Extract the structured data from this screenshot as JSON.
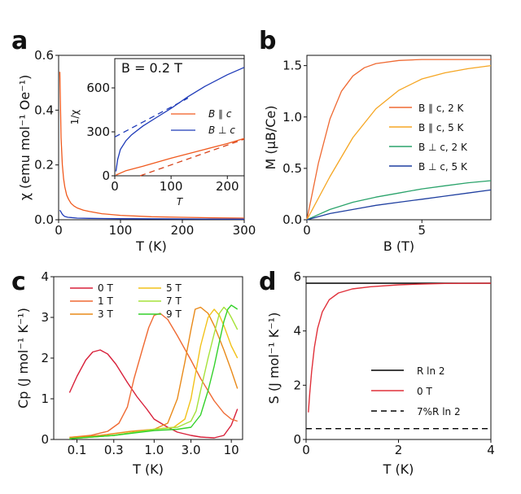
{
  "chart_data": [
    {
      "panel": "a",
      "type": "line",
      "xlabel": "T (K)",
      "ylabel": "χ (emu mol⁻¹ Oe⁻¹)",
      "xlim": [
        0,
        300
      ],
      "ylim": [
        0,
        0.6
      ],
      "xticks": [
        "0",
        "100",
        "200",
        "300"
      ],
      "yticks": [
        "0.0",
        "0.2",
        "0.4",
        "0.6"
      ],
      "series": [
        {
          "name": "B ∥ c",
          "color": "#f05a1e",
          "x": [
            2,
            4,
            6,
            8,
            10,
            13,
            16,
            20,
            25,
            30,
            40,
            50,
            70,
            100,
            150,
            200,
            250,
            300
          ],
          "y": [
            0.54,
            0.3,
            0.2,
            0.15,
            0.12,
            0.09,
            0.075,
            0.06,
            0.05,
            0.043,
            0.035,
            0.03,
            0.022,
            0.016,
            0.011,
            0.009,
            0.007,
            0.006
          ]
        },
        {
          "name": "B ⊥ c",
          "color": "#1e3ab8",
          "x": [
            2,
            4,
            6,
            8,
            10,
            15,
            20,
            30,
            50,
            100,
            200,
            300
          ],
          "y": [
            0.035,
            0.028,
            0.02,
            0.015,
            0.012,
            0.009,
            0.008,
            0.006,
            0.005,
            0.004,
            0.003,
            0.002
          ]
        }
      ],
      "inset": {
        "title": "B = 0.2 T",
        "xlabel": "T",
        "ylabel": "1/χ",
        "xlim": [
          0,
          230
        ],
        "ylim": [
          0,
          800
        ],
        "xticks": [
          "0",
          "100",
          "200"
        ],
        "yticks": [
          "0",
          "300",
          "600"
        ],
        "legend": [
          "B ∥ c",
          "B ⊥ c"
        ],
        "series": [
          {
            "name": "B ∥ c",
            "color": "#f05a1e",
            "x": [
              2,
              20,
              50,
              100,
              150,
              200,
              230
            ],
            "y": [
              5,
              35,
              65,
              120,
              170,
              220,
              255
            ]
          },
          {
            "name": "B ⊥ c",
            "color": "#1e3ab8",
            "x": [
              2,
              5,
              10,
              20,
              30,
              50,
              75,
              100,
              130,
              160,
              200,
              230
            ],
            "y": [
              30,
              110,
              180,
              240,
              280,
              340,
              400,
              460,
              540,
              610,
              690,
              740
            ]
          }
        ],
        "fits": [
          {
            "name": "B ∥ c fit",
            "color": "#d8431a",
            "x": [
              45,
              230
            ],
            "y": [
              0,
              250
            ]
          },
          {
            "name": "B ⊥ c fit",
            "color": "#1e3ab8",
            "x": [
              0,
              130
            ],
            "y": [
              265,
              530
            ]
          }
        ]
      }
    },
    {
      "panel": "b",
      "type": "line",
      "xlabel": "B (T)",
      "ylabel": "M (μB/Ce)",
      "xlim": [
        0,
        8
      ],
      "ylim": [
        0,
        1.6
      ],
      "xticks": [
        "0",
        "5"
      ],
      "yticks": [
        "0.0",
        "0.5",
        "1.0",
        "1.5"
      ],
      "legend": [
        "B ∥ c, 2 K",
        "B ∥ c, 5 K",
        "B ⊥ c, 2 K",
        "B ⊥ c, 5 K"
      ],
      "series": [
        {
          "name": "B ∥ c, 2 K",
          "color": "#ef6a33",
          "x": [
            0,
            0.5,
            1,
            1.5,
            2,
            2.5,
            3,
            4,
            5,
            6,
            7,
            8
          ],
          "y": [
            0,
            0.55,
            0.98,
            1.25,
            1.4,
            1.48,
            1.52,
            1.55,
            1.56,
            1.56,
            1.56,
            1.56
          ]
        },
        {
          "name": "B ∥ c, 5 K",
          "color": "#f5a623",
          "x": [
            0,
            1,
            2,
            3,
            4,
            5,
            6,
            7,
            8
          ],
          "y": [
            0,
            0.42,
            0.8,
            1.08,
            1.26,
            1.37,
            1.43,
            1.47,
            1.5
          ]
        },
        {
          "name": "B ⊥ c, 2 K",
          "color": "#2aa36b",
          "x": [
            0,
            1,
            2,
            3,
            4,
            5,
            6,
            7,
            8
          ],
          "y": [
            0,
            0.1,
            0.17,
            0.22,
            0.26,
            0.3,
            0.33,
            0.36,
            0.38
          ]
        },
        {
          "name": "B ⊥ c, 5 K",
          "color": "#1f3fa0",
          "x": [
            0,
            1,
            2,
            3,
            4,
            5,
            6,
            7,
            8
          ],
          "y": [
            0,
            0.06,
            0.1,
            0.14,
            0.17,
            0.2,
            0.23,
            0.26,
            0.29
          ]
        }
      ]
    },
    {
      "panel": "c",
      "type": "line",
      "xscale": "log",
      "xlabel": "T (K)",
      "ylabel": "Cp (J mol⁻¹ K⁻¹)",
      "xlim": [
        0.05,
        14
      ],
      "ylim": [
        0,
        4
      ],
      "xticks": [
        "0.1",
        "0.3",
        "1.0",
        "3.0",
        "10"
      ],
      "yticks": [
        "0",
        "1",
        "2",
        "3",
        "4"
      ],
      "legend": [
        "0 T",
        "1 T",
        "3 T",
        "5 T",
        "7 T",
        "9 T"
      ],
      "series": [
        {
          "name": "0 T",
          "color": "#d8203a",
          "x": [
            0.08,
            0.1,
            0.13,
            0.16,
            0.2,
            0.25,
            0.32,
            0.45,
            0.6,
            0.8,
            1.0,
            1.5,
            2,
            3,
            4,
            6,
            8,
            10,
            12
          ],
          "y": [
            1.15,
            1.55,
            1.95,
            2.15,
            2.2,
            2.1,
            1.85,
            1.4,
            1.05,
            0.75,
            0.5,
            0.3,
            0.18,
            0.1,
            0.06,
            0.04,
            0.1,
            0.35,
            0.75
          ]
        },
        {
          "name": "1 T",
          "color": "#ef6a33",
          "x": [
            0.08,
            0.15,
            0.25,
            0.35,
            0.45,
            0.55,
            0.7,
            0.85,
            1.0,
            1.2,
            1.5,
            2,
            3,
            4,
            6,
            8,
            10,
            12
          ],
          "y": [
            0.05,
            0.1,
            0.2,
            0.4,
            0.8,
            1.5,
            2.2,
            2.75,
            3.05,
            3.1,
            2.95,
            2.55,
            1.95,
            1.5,
            0.95,
            0.65,
            0.5,
            0.45
          ]
        },
        {
          "name": "3 T",
          "color": "#e98a1a",
          "x": [
            0.08,
            0.2,
            0.5,
            1.0,
            1.5,
            2.0,
            2.5,
            3.0,
            3.4,
            4,
            5,
            6,
            8,
            10,
            12
          ],
          "y": [
            0.05,
            0.1,
            0.2,
            0.25,
            0.4,
            1.0,
            1.9,
            2.7,
            3.2,
            3.25,
            3.1,
            2.8,
            2.2,
            1.7,
            1.25
          ]
        },
        {
          "name": "5 T",
          "color": "#f2c21a",
          "x": [
            0.08,
            0.3,
            1.0,
            1.8,
            2.5,
            3.0,
            3.5,
            4.0,
            5.0,
            6.0,
            7.0,
            8.0,
            10,
            12
          ],
          "y": [
            0.02,
            0.1,
            0.25,
            0.3,
            0.5,
            1.0,
            1.7,
            2.3,
            3.0,
            3.2,
            3.05,
            2.8,
            2.3,
            2.0
          ]
        },
        {
          "name": "7 T",
          "color": "#a6e23a",
          "x": [
            0.08,
            0.3,
            1.0,
            2.0,
            3.0,
            3.5,
            4.0,
            5.0,
            6.0,
            7.0,
            8.0,
            9.0,
            10,
            12
          ],
          "y": [
            0.02,
            0.1,
            0.25,
            0.3,
            0.45,
            0.7,
            1.2,
            2.0,
            2.6,
            3.1,
            3.25,
            3.15,
            3.0,
            2.7
          ]
        },
        {
          "name": "9 T",
          "color": "#33d12a",
          "x": [
            0.08,
            0.3,
            1.0,
            2.0,
            3.0,
            4.0,
            5.0,
            6.0,
            7.0,
            8.0,
            9.0,
            10.0,
            11.0,
            12
          ],
          "y": [
            0.02,
            0.1,
            0.22,
            0.25,
            0.3,
            0.6,
            1.2,
            1.8,
            2.4,
            2.9,
            3.2,
            3.3,
            3.25,
            3.2
          ]
        }
      ]
    },
    {
      "panel": "d",
      "type": "line",
      "xlabel": "T (K)",
      "ylabel": "S (J mol⁻¹ K⁻¹)",
      "xlim": [
        0,
        4
      ],
      "ylim": [
        0,
        6
      ],
      "xticks": [
        "0",
        "2",
        "4"
      ],
      "yticks": [
        "0",
        "2",
        "4",
        "6"
      ],
      "legend": [
        "R ln 2",
        "0 T",
        "7%R ln 2"
      ],
      "series": [
        {
          "name": "R ln 2",
          "color": "#000000",
          "style": "solid",
          "x": [
            0,
            4
          ],
          "y": [
            5.76,
            5.76
          ]
        },
        {
          "name": "0 T",
          "color": "#e0303a",
          "x": [
            0.05,
            0.08,
            0.12,
            0.18,
            0.25,
            0.35,
            0.5,
            0.7,
            1.0,
            1.4,
            2.0,
            2.5,
            3.0,
            4.0
          ],
          "y": [
            1.0,
            1.7,
            2.5,
            3.4,
            4.1,
            4.7,
            5.15,
            5.4,
            5.55,
            5.63,
            5.7,
            5.73,
            5.75,
            5.76
          ]
        },
        {
          "name": "7%R ln 2",
          "color": "#000000",
          "style": "dashed",
          "x": [
            0,
            4
          ],
          "y": [
            0.4,
            0.4
          ]
        }
      ]
    }
  ]
}
